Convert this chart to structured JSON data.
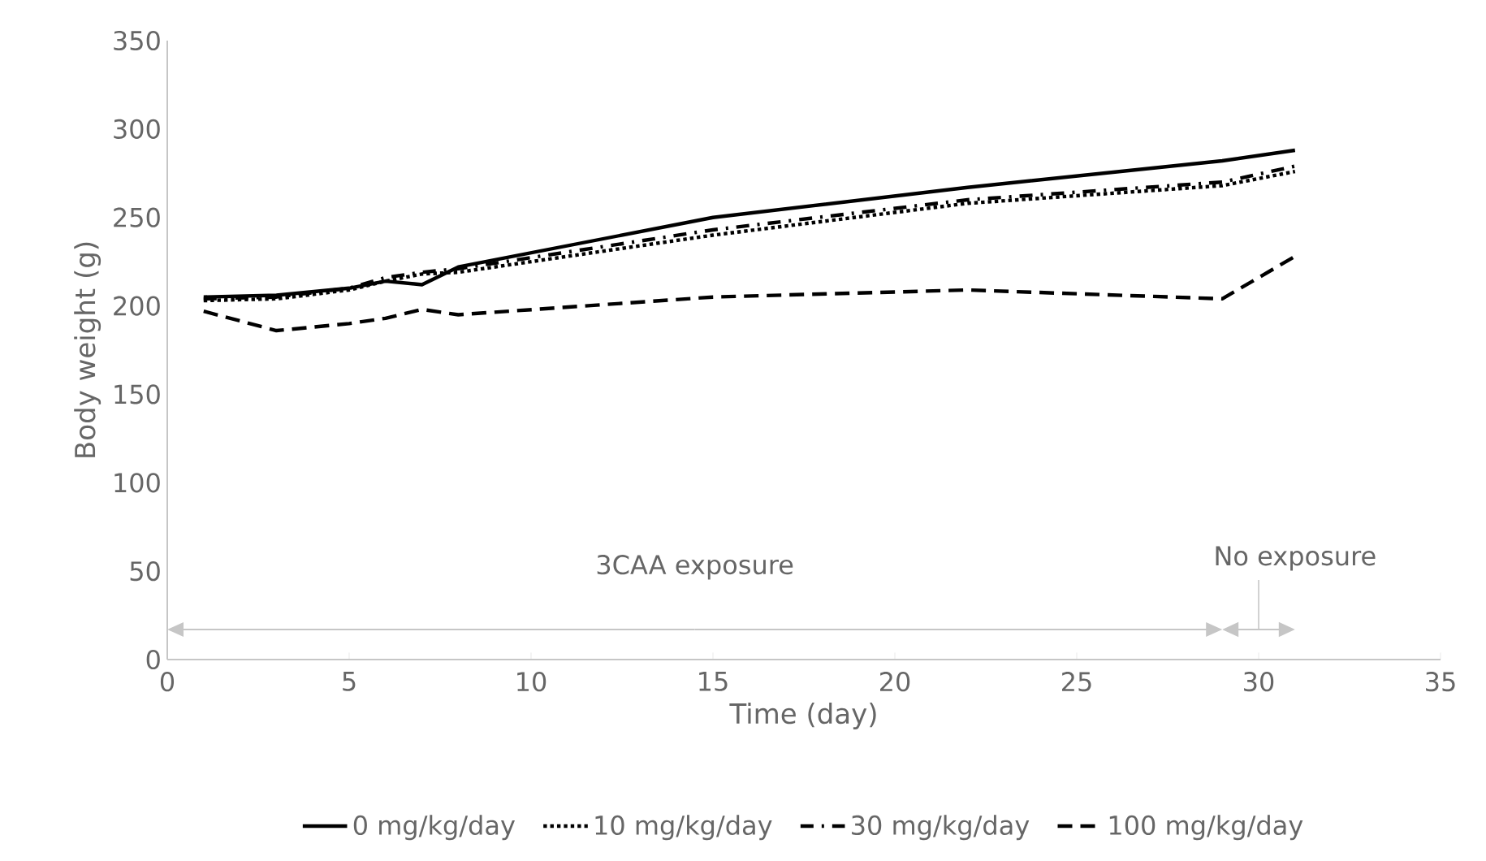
{
  "chart_data": {
    "type": "line",
    "xlabel": "Time (day)",
    "ylabel": "Body weight (g)",
    "x": [
      1,
      3,
      5,
      6,
      7,
      8,
      15,
      22,
      29,
      31
    ],
    "series": [
      {
        "name": "0 mg/kg/day",
        "color": "#000000",
        "line_style": "solid",
        "values": [
          205,
          206,
          210,
          214,
          212,
          222,
          250,
          267,
          282,
          288
        ]
      },
      {
        "name": "10 mg/kg/day",
        "color": "#000000",
        "line_style": "dotted",
        "values": [
          203,
          204,
          209,
          214,
          218,
          219,
          240,
          258,
          268,
          276
        ]
      },
      {
        "name": "30 mg/kg/day",
        "color": "#000000",
        "line_style": "dashdot",
        "values": [
          204,
          205,
          210,
          216,
          219,
          221,
          243,
          260,
          270,
          279
        ]
      },
      {
        "name": "100 mg/kg/day",
        "color": "#000000",
        "line_style": "dashed",
        "values": [
          197,
          186,
          190,
          193,
          198,
          195,
          205,
          209,
          204,
          228
        ]
      }
    ],
    "xlim": [
      0,
      35
    ],
    "xticks": [
      0,
      5,
      10,
      15,
      20,
      25,
      30,
      35
    ],
    "ylim": [
      0,
      350
    ],
    "yticks": [
      0,
      50,
      100,
      150,
      200,
      250,
      300,
      350
    ],
    "grid": false,
    "legend": "bottom",
    "marker": "none",
    "annotations": [
      "3CAA exposure",
      "No exposure"
    ]
  }
}
